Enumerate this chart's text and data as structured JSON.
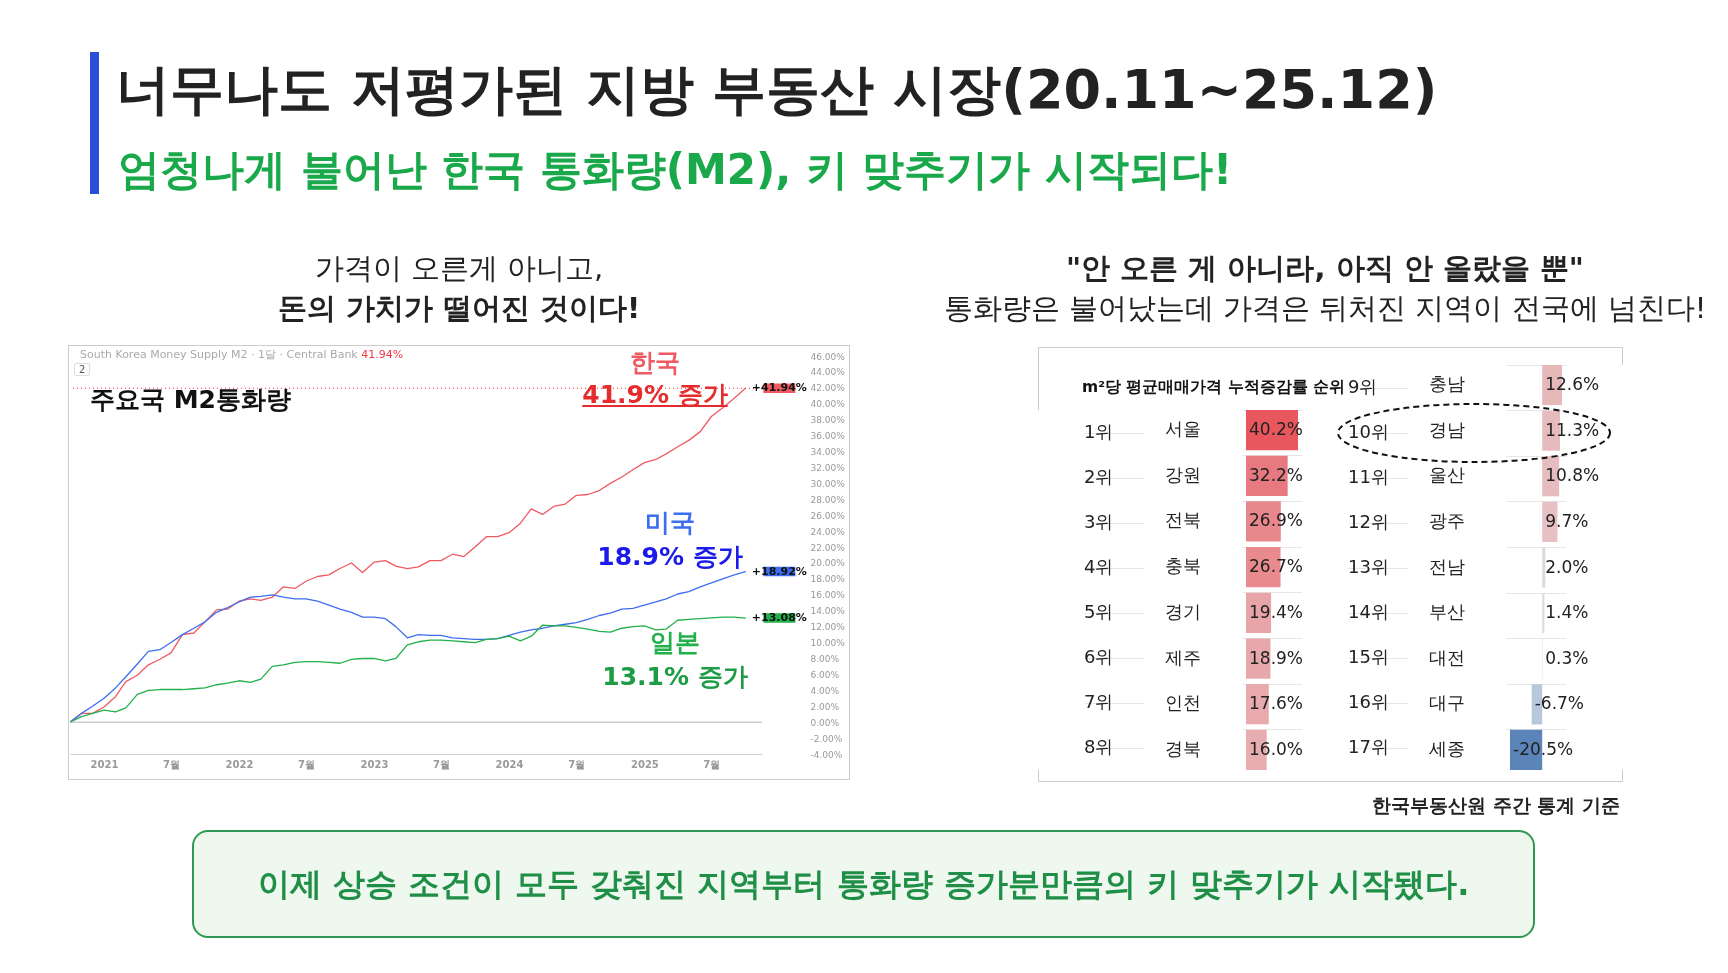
{
  "chart_data": [
    {
      "type": "line",
      "title": "너무나도 저평가된 지방 부동산 시장(20.11~25.12)",
      "subtitle": "엄청나게 불어난 한국 통화량(M2), 키 맞추기가 시작되다!",
      "x": [
        "2020-10",
        "2020-11",
        "2020-12",
        "2021-01",
        "2021-02",
        "2021-03",
        "2021-04",
        "2021-05",
        "2021-06",
        "2021-07",
        "2021-08",
        "2021-09",
        "2021-10",
        "2021-11",
        "2021-12",
        "2022-01",
        "2022-02",
        "2022-03",
        "2022-04",
        "2022-05",
        "2022-06",
        "2022-07",
        "2022-08",
        "2022-09",
        "2022-10",
        "2022-11",
        "2022-12",
        "2023-01",
        "2023-02",
        "2023-03",
        "2023-04",
        "2023-05",
        "2023-06",
        "2023-07",
        "2023-08",
        "2023-09",
        "2023-10",
        "2023-11",
        "2023-12",
        "2024-01",
        "2024-02",
        "2024-03",
        "2024-04",
        "2024-05",
        "2024-06",
        "2024-07",
        "2024-08",
        "2024-09",
        "2024-10",
        "2024-11",
        "2024-12",
        "2025-01",
        "2025-02",
        "2025-03",
        "2025-04",
        "2025-05",
        "2025-06",
        "2025-07",
        "2025-08",
        "2025-09",
        "2025-10"
      ],
      "series": [
        {
          "name": "한국",
          "color": "#ef5a63",
          "values": [
            0,
            1.1,
            1.1,
            1.9,
            3.2,
            5.1,
            5.9,
            7.2,
            7.9,
            8.7,
            11.0,
            11.2,
            12.6,
            14.1,
            14.2,
            15.2,
            15.5,
            15.3,
            15.7,
            17.0,
            16.8,
            17.7,
            18.3,
            18.5,
            19.3,
            20.0,
            18.8,
            20.1,
            20.3,
            19.6,
            19.3,
            19.5,
            20.3,
            20.3,
            21.1,
            20.8,
            22.0,
            23.3,
            23.3,
            23.8,
            25.0,
            26.8,
            26.1,
            27.1,
            27.4,
            28.5,
            28.6,
            29.1,
            30.0,
            30.8,
            31.7,
            32.6,
            33.0,
            33.7,
            34.6,
            35.4,
            36.5,
            38.4,
            39.5,
            40.7,
            41.94
          ],
          "value_labels": [
            null,
            null,
            null,
            null,
            null,
            null,
            null,
            null,
            null,
            null,
            null,
            null,
            null,
            null,
            null,
            null,
            null,
            null,
            null,
            null,
            null,
            null,
            null,
            null,
            null,
            null,
            null,
            null,
            null,
            null,
            null,
            null,
            null,
            null,
            null,
            null,
            null,
            null,
            null,
            null,
            null,
            null,
            null,
            null,
            null,
            null,
            null,
            null,
            null,
            null,
            null,
            null,
            null,
            null,
            null,
            null,
            null,
            null,
            null,
            null,
            "+41.94%"
          ]
        },
        {
          "name": "미국",
          "color": "#3d6ef0",
          "values": [
            0,
            1.1,
            2.0,
            3.0,
            4.3,
            5.7,
            7.3,
            8.9,
            9.1,
            10.0,
            11.0,
            11.8,
            12.6,
            13.8,
            14.4,
            15.1,
            15.7,
            15.8,
            16.0,
            15.7,
            15.5,
            15.5,
            15.2,
            14.7,
            14.2,
            13.8,
            13.2,
            13.2,
            13.0,
            12.0,
            10.6,
            11.0,
            10.9,
            10.9,
            10.6,
            10.5,
            10.4,
            10.4,
            10.5,
            10.9,
            11.3,
            11.6,
            11.8,
            12.1,
            12.3,
            12.5,
            12.9,
            13.4,
            13.7,
            14.2,
            14.3,
            14.7,
            15.1,
            15.5,
            16.1,
            16.4,
            17.0,
            17.5,
            18.0,
            18.5,
            18.92
          ],
          "value_labels": [
            null,
            null,
            null,
            null,
            null,
            null,
            null,
            null,
            null,
            null,
            null,
            null,
            null,
            null,
            null,
            null,
            null,
            null,
            null,
            null,
            null,
            null,
            null,
            null,
            null,
            null,
            null,
            null,
            null,
            null,
            null,
            null,
            null,
            null,
            null,
            null,
            null,
            null,
            null,
            null,
            null,
            null,
            null,
            null,
            null,
            null,
            null,
            null,
            null,
            null,
            null,
            null,
            null,
            null,
            null,
            null,
            null,
            null,
            null,
            null,
            "+18.92%"
          ]
        },
        {
          "name": "일본",
          "color": "#22b04a",
          "values": [
            0,
            0.7,
            1.1,
            1.5,
            1.3,
            1.8,
            3.5,
            4.0,
            4.1,
            4.1,
            4.1,
            4.2,
            4.3,
            4.7,
            4.9,
            5.2,
            5.0,
            5.4,
            7.0,
            7.2,
            7.5,
            7.6,
            7.6,
            7.5,
            7.4,
            7.9,
            8.0,
            8.0,
            7.7,
            8.0,
            9.7,
            10.1,
            10.3,
            10.3,
            10.2,
            10.1,
            10.0,
            10.4,
            10.5,
            10.8,
            10.2,
            10.8,
            12.2,
            12.1,
            12.1,
            11.9,
            11.7,
            11.4,
            11.3,
            11.8,
            12.0,
            12.1,
            11.6,
            11.7,
            12.8,
            12.9,
            13.0,
            13.1,
            13.2,
            13.2,
            13.08
          ],
          "value_labels": [
            null,
            null,
            null,
            null,
            null,
            null,
            null,
            null,
            null,
            null,
            null,
            null,
            null,
            null,
            null,
            null,
            null,
            null,
            null,
            null,
            null,
            null,
            null,
            null,
            null,
            null,
            null,
            null,
            null,
            null,
            null,
            null,
            null,
            null,
            null,
            null,
            null,
            null,
            null,
            null,
            null,
            null,
            null,
            null,
            null,
            null,
            null,
            null,
            null,
            null,
            null,
            null,
            null,
            null,
            null,
            null,
            null,
            null,
            null,
            null,
            "+13.08%"
          ]
        }
      ],
      "xlim": [
        "2020-10",
        "2025-11-15"
      ],
      "xticks": [
        {
          "value": "2021-01",
          "label": "2021"
        },
        {
          "value": "2021-07",
          "label": "7월"
        },
        {
          "value": "2022-01",
          "label": "2022"
        },
        {
          "value": "2022-07",
          "label": "7월"
        },
        {
          "value": "2023-01",
          "label": "2023"
        },
        {
          "value": "2023-07",
          "label": "7월"
        },
        {
          "value": "2024-01",
          "label": "2024"
        },
        {
          "value": "2024-07",
          "label": "7월"
        },
        {
          "value": "2025-01",
          "label": "2025"
        },
        {
          "value": "2025-07",
          "label": "7월"
        }
      ],
      "ylim": [
        -4,
        46
      ],
      "yticks": [
        {
          "value": -4,
          "label": "-4.00%"
        },
        {
          "value": -2,
          "label": "-2.00%"
        },
        {
          "value": 0,
          "label": "0.00%"
        },
        {
          "value": 2,
          "label": "2.00%"
        },
        {
          "value": 4,
          "label": "4.00%"
        },
        {
          "value": 6,
          "label": "6.00%"
        },
        {
          "value": 8,
          "label": "8.00%"
        },
        {
          "value": 10,
          "label": "10.00%"
        },
        {
          "value": 12,
          "label": "12.00%"
        },
        {
          "value": 14,
          "label": "14.00%"
        },
        {
          "value": 16,
          "label": "16.00%"
        },
        {
          "value": 18,
          "label": "18.00%"
        },
        {
          "value": 20,
          "label": "20.00%"
        },
        {
          "value": 22,
          "label": "22.00%"
        },
        {
          "value": 24,
          "label": "24.00%"
        },
        {
          "value": 26,
          "label": "26.00%"
        },
        {
          "value": 28,
          "label": "28.00%"
        },
        {
          "value": 30,
          "label": "30.00%"
        },
        {
          "value": 32,
          "label": "32.00%"
        },
        {
          "value": 34,
          "label": "34.00%"
        },
        {
          "value": 36,
          "label": "36.00%"
        },
        {
          "value": 38,
          "label": "38.00%"
        },
        {
          "value": 40,
          "label": "40.00%"
        },
        {
          "value": 42,
          "label": "42.00%"
        },
        {
          "value": 44,
          "label": "44.00%"
        },
        {
          "value": 46,
          "label": "46.00%"
        }
      ],
      "ref_lines": [
        {
          "axis": "y",
          "value": 41.94,
          "color": "#f23645",
          "line_style": "dotted"
        },
        {
          "axis": "y",
          "value": 0,
          "color": "#b2b5be"
        }
      ],
      "annotations": [
        "가격이 오른게 아니고,",
        "돈의 가치가 떨어진 것이다!",
        "South Korea Money Supply M2 · 1달 · Central Bank",
        "41.94%",
        "2",
        "주요국 M2통화량",
        "41.9% 증가",
        "18.9% 증가",
        "13.1% 증가"
      ]
    },
    {
      "type": "bar",
      "orientation": "horizontal",
      "title": "m²당 평균매매가격 누적증감률 순위",
      "grid": "y",
      "categories": [
        "서울",
        "강원",
        "전북",
        "충북",
        "경기",
        "제주",
        "인천",
        "경북"
      ],
      "values": [
        40.2,
        32.2,
        26.9,
        26.7,
        19.4,
        18.9,
        17.6,
        16.0
      ],
      "value_labels": [
        "40.2%",
        "32.2%",
        "26.9%",
        "26.7%",
        "19.4%",
        "18.9%",
        "17.6%",
        "16.0%"
      ],
      "colors": [
        "#e8565e",
        "#e67a80",
        "#e8888d",
        "#e88a8e",
        "#e8a5a9",
        "#e8a8ab",
        "#e8aaad",
        "#e8adb0"
      ],
      "annotations": [
        "\"안 오른 게 아니라, 아직 안 올랐을 뿐\"",
        "통화량은 불어났는데 가격은 뒤처진 지역이 전국에 넘친다!",
        "한국부동산원 주간 통계 기준",
        "이제 상승 조건이 모두 갖춰진 지역부터 통화량 증가분만큼의 키 맞추기가 시작됐다.",
        "1위",
        "2위",
        "3위",
        "4위",
        "5위",
        "6위",
        "7위",
        "8위"
      ]
    },
    {
      "type": "bar",
      "orientation": "horizontal",
      "grid": "y",
      "categories": [
        "충남",
        "경남",
        "울산",
        "광주",
        "전남",
        "부산",
        "대전",
        "대구",
        "세종"
      ],
      "values": [
        12.6,
        11.3,
        10.8,
        9.7,
        2.0,
        1.4,
        0.3,
        -6.7,
        -20.5
      ],
      "value_labels": [
        "12.6%",
        "11.3%",
        "10.8%",
        "9.7%",
        "2.0%",
        "1.4%",
        "0.3%",
        "-6.7%",
        "-20.5%"
      ],
      "colors": [
        "#e6b8ba",
        "#e6bbbd",
        "#e6bcbe",
        "#e6c0c2",
        "#dedada",
        "#dedcdc",
        "#e2e2e2",
        "#b8c8dc",
        "#5b85b8"
      ],
      "annotations": [
        "9위",
        "10위",
        "11위",
        "12위",
        "13위",
        "14위",
        "15위",
        "16위",
        "17위"
      ]
    }
  ]
}
